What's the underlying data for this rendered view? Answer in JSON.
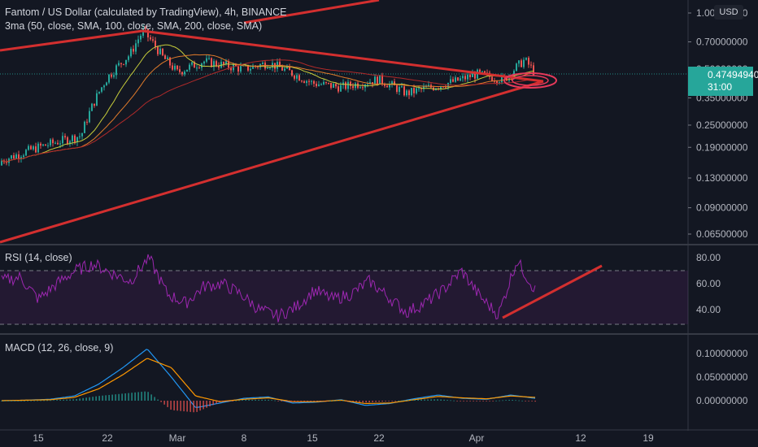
{
  "header": {
    "title": "Fantom / US Dollar (calculated by TradingView), 4h, BINANCE",
    "ma_indicator": "3ma (50, close, SMA, 100, close, SMA, 200, close, SMA)",
    "currency": "USD"
  },
  "price_tag": {
    "price": "0.47494940",
    "countdown": "31:00",
    "color": "#26a69a"
  },
  "rsi": {
    "label": "RSI (14, close)",
    "levels": [
      "80.00",
      "60.00",
      "40.00"
    ],
    "color": "#9c27b0"
  },
  "macd": {
    "label": "MACD (12, 26, close, 9)",
    "levels": [
      "0.10000000",
      "0.05000000",
      "0.00000000"
    ]
  },
  "colors": {
    "background": "#131722",
    "trendline": "#d32f2f",
    "up_candle": "#26a69a",
    "down_candle": "#ef5350",
    "ma50": "#c6cc3b",
    "ma100": "#e07b2b",
    "ma200": "#b02a2a",
    "macd_line": "#2196f3",
    "signal_line": "#ff9800"
  },
  "chart_data": [
    {
      "type": "candlestick",
      "title": "Fantom / US Dollar (calculated by TradingView), 4h, BINANCE",
      "y_scale": "log",
      "y_ticks": [
        "1.00000000",
        "0.70000000",
        "0.50000000",
        "0.35000000",
        "0.25000000",
        "0.19000000",
        "0.13000000",
        "0.09000000",
        "0.06500000"
      ],
      "x_ticks": [
        "15",
        "22",
        "Mar",
        "8",
        "15",
        "22",
        "Apr",
        "12",
        "19"
      ],
      "price_approx": {
        "x": [
          "Feb 11",
          "Feb 15",
          "Feb 19",
          "Feb 22",
          "Feb 24",
          "Feb 26",
          "Feb 28",
          "Mar 1",
          "Mar 4",
          "Mar 8",
          "Mar 11",
          "Mar 15",
          "Mar 18",
          "Mar 22",
          "Mar 25",
          "Mar 29",
          "Apr 1",
          "Apr 4",
          "Apr 6",
          "Apr 7"
        ],
        "close": [
          0.16,
          0.19,
          0.22,
          0.45,
          0.6,
          0.8,
          0.58,
          0.48,
          0.55,
          0.5,
          0.54,
          0.42,
          0.4,
          0.44,
          0.37,
          0.43,
          0.47,
          0.44,
          0.56,
          0.475
        ]
      },
      "last_price": 0.4749494,
      "moving_averages": [
        "SMA 50",
        "SMA 100",
        "SMA 200"
      ],
      "annotations": [
        "symmetrical triangle trendlines",
        "ellipse at apex"
      ]
    },
    {
      "type": "line",
      "title": "RSI (14, close)",
      "y_ticks": [
        "80.00",
        "60.00",
        "40.00"
      ],
      "bands": [
        70,
        30
      ],
      "values": [
        62,
        65,
        48,
        60,
        70,
        75,
        68,
        62,
        80,
        52,
        45,
        58,
        60,
        52,
        40,
        35,
        42,
        55,
        48,
        52,
        62,
        50,
        38,
        45,
        55,
        70,
        50,
        36,
        78,
        55
      ],
      "annotations": [
        "rising trendline on RSI lows"
      ]
    },
    {
      "type": "line",
      "title": "MACD (12, 26, close, 9)",
      "y_ticks": [
        "0.10000000",
        "0.05000000",
        "0.00000000"
      ],
      "macd": [
        0.0,
        0.001,
        0.003,
        0.01,
        0.035,
        0.07,
        0.11,
        0.05,
        -0.015,
        -0.005,
        0.005,
        0.008,
        -0.005,
        -0.003,
        0.002,
        -0.01,
        -0.006,
        0.004,
        0.012,
        0.005,
        0.003,
        0.012,
        0.005
      ],
      "signal": [
        0.0,
        0.001,
        0.002,
        0.007,
        0.025,
        0.055,
        0.09,
        0.07,
        0.01,
        -0.002,
        0.003,
        0.006,
        -0.002,
        -0.002,
        0.001,
        -0.006,
        -0.005,
        0.002,
        0.009,
        0.006,
        0.004,
        0.01,
        0.007
      ]
    }
  ]
}
